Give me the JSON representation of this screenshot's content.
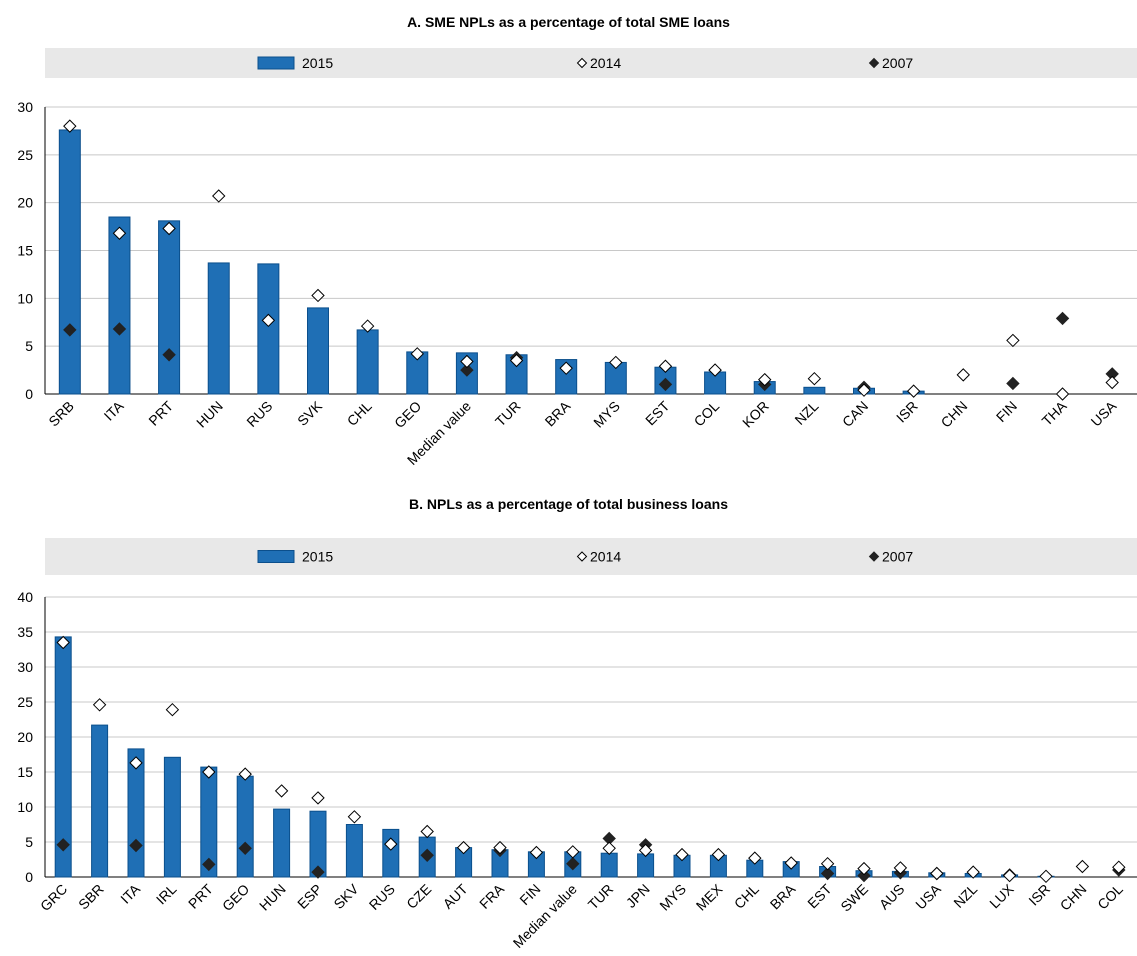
{
  "colors": {
    "bar": "#1f6fb5",
    "bar_stroke": "#0b4f8c",
    "legend_band": "#e8e8e8",
    "grid": "#c8c8c8",
    "marker_2007": "#222222",
    "marker_2014": "#ffffff"
  },
  "chart_data": [
    {
      "type": "bar",
      "title": "A. SME NPLs as a percentage of total SME loans",
      "legend": {
        "2015": "2015",
        "2014": "2014",
        "2007": "2007"
      },
      "legend_placement": "top",
      "ylim": [
        0,
        30
      ],
      "yticks": [
        0,
        5,
        10,
        15,
        20,
        25,
        30
      ],
      "grid": true,
      "categories": [
        "SRB",
        "ITA",
        "PRT",
        "HUN",
        "RUS",
        "SVK",
        "CHL",
        "GEO",
        "Median value",
        "TUR",
        "BRA",
        "MYS",
        "EST",
        "COL",
        "KOR",
        "NZL",
        "CAN",
        "ISR",
        "CHN",
        "FIN",
        "THA",
        "USA"
      ],
      "series": [
        {
          "name": "2015",
          "kind": "bar",
          "values": [
            27.6,
            18.5,
            18.1,
            13.7,
            13.6,
            9.0,
            6.7,
            4.4,
            4.3,
            4.1,
            3.6,
            3.3,
            2.8,
            2.3,
            1.3,
            0.7,
            0.6,
            0.3,
            null,
            null,
            null,
            null
          ]
        },
        {
          "name": "2014",
          "kind": "marker-open",
          "values": [
            28.0,
            16.8,
            17.3,
            20.7,
            7.7,
            10.3,
            7.1,
            4.2,
            3.4,
            3.5,
            2.7,
            3.3,
            2.9,
            2.5,
            1.5,
            1.6,
            0.4,
            0.3,
            2.0,
            5.6,
            0.0,
            1.2
          ]
        },
        {
          "name": "2007",
          "kind": "marker-filled",
          "values": [
            6.7,
            6.8,
            4.1,
            null,
            null,
            null,
            null,
            null,
            2.5,
            3.8,
            null,
            null,
            1.0,
            2.5,
            1.0,
            null,
            0.7,
            null,
            null,
            1.1,
            7.9,
            2.1
          ]
        }
      ]
    },
    {
      "type": "bar",
      "title": "B. NPLs as a percentage of total business loans",
      "legend": {
        "2015": "2015",
        "2014": "2014",
        "2007": "2007"
      },
      "legend_placement": "top",
      "ylim": [
        0,
        40
      ],
      "yticks": [
        0,
        5,
        10,
        15,
        20,
        25,
        30,
        35,
        40
      ],
      "grid": true,
      "categories": [
        "GRC",
        "SBR",
        "ITA",
        "IRL",
        "PRT",
        "GEO",
        "HUN",
        "ESP",
        "SKV",
        "RUS",
        "CZE",
        "AUT",
        "FRA",
        "FIN",
        "Median value",
        "TUR",
        "JPN",
        "MYS",
        "MEX",
        "CHL",
        "BRA",
        "EST",
        "SWE",
        "AUS",
        "USA",
        "NZL",
        "LUX",
        "ISR",
        "CHN",
        "COL"
      ],
      "series": [
        {
          "name": "2015",
          "kind": "bar",
          "values": [
            34.3,
            21.7,
            18.3,
            17.1,
            15.7,
            14.4,
            9.7,
            9.4,
            7.5,
            6.8,
            5.7,
            4.2,
            3.9,
            3.6,
            3.6,
            3.4,
            3.3,
            3.1,
            3.1,
            2.4,
            2.2,
            1.5,
            0.9,
            0.8,
            0.6,
            0.5,
            0.3,
            0.1,
            null,
            null
          ]
        },
        {
          "name": "2014",
          "kind": "marker-open",
          "values": [
            33.5,
            24.6,
            16.3,
            23.9,
            15.0,
            14.7,
            12.3,
            11.3,
            8.6,
            4.7,
            6.5,
            4.2,
            4.2,
            3.5,
            3.6,
            4.1,
            3.8,
            3.2,
            3.2,
            2.7,
            2.0,
            1.9,
            1.2,
            1.3,
            0.5,
            0.7,
            0.2,
            0.1,
            1.5,
            1.4
          ]
        },
        {
          "name": "2007",
          "kind": "marker-filled",
          "values": [
            4.6,
            null,
            4.5,
            null,
            1.8,
            4.1,
            null,
            0.7,
            null,
            null,
            3.1,
            null,
            3.8,
            null,
            1.9,
            5.5,
            4.6,
            null,
            null,
            null,
            null,
            0.5,
            0.2,
            0.6,
            0.5,
            null,
            0.3,
            null,
            null,
            1.0
          ]
        }
      ]
    }
  ]
}
